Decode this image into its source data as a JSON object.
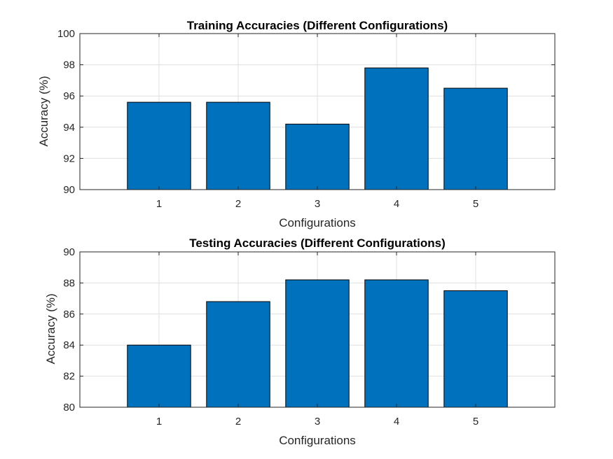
{
  "chart_data": [
    {
      "type": "bar",
      "title": "Training Accuracies (Different Configurations)",
      "xlabel": "Configurations",
      "ylabel": "Accuracy (%)",
      "categories": [
        "1",
        "2",
        "3",
        "4",
        "5"
      ],
      "values": [
        95.6,
        95.6,
        94.2,
        97.8,
        96.5
      ],
      "xlim": [
        0,
        6
      ],
      "ylim": [
        90,
        100
      ],
      "yticks": [
        90,
        92,
        94,
        96,
        98,
        100
      ],
      "grid": true,
      "color": "#0072bd"
    },
    {
      "type": "bar",
      "title": "Testing Accuracies (Different Configurations)",
      "xlabel": "Configurations",
      "ylabel": "Accuracy (%)",
      "categories": [
        "1",
        "2",
        "3",
        "4",
        "5"
      ],
      "values": [
        84.0,
        86.8,
        88.2,
        88.2,
        87.5
      ],
      "xlim": [
        0,
        6
      ],
      "ylim": [
        80,
        90
      ],
      "yticks": [
        80,
        82,
        84,
        86,
        88,
        90
      ],
      "grid": true,
      "color": "#0072bd"
    }
  ]
}
